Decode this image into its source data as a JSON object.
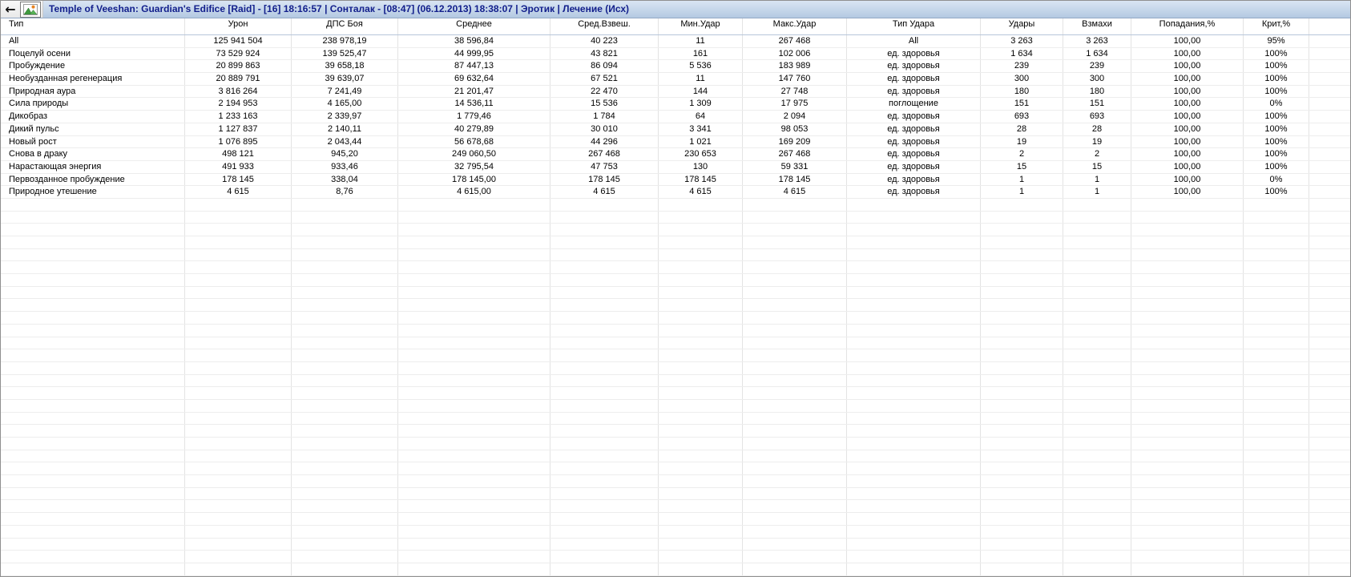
{
  "colors": {
    "titlebar_top": "#d9e5f3",
    "titlebar_bottom": "#b4c9e2",
    "title_text": "#13208c"
  },
  "toolbar": {
    "back_icon_glyph": "←",
    "graph_icon": "picture-chart-icon"
  },
  "header": {
    "title": "Temple of Veeshan: Guardian's Edifice [Raid] - [16] 18:16:57 | Сонталак - [08:47] (06.12.2013) 18:38:07 | Эротик | Лечение (Исх)"
  },
  "table": {
    "columns": [
      {
        "label": "Тип"
      },
      {
        "label": "Урон"
      },
      {
        "label": "ДПС Боя"
      },
      {
        "label": "Среднее"
      },
      {
        "label": "Сред.Взвеш."
      },
      {
        "label": "Мин.Удар"
      },
      {
        "label": "Макс.Удар"
      },
      {
        "label": "Тип Удара"
      },
      {
        "label": "Удары"
      },
      {
        "label": "Взмахи"
      },
      {
        "label": "Попадания,%"
      },
      {
        "label": "Крит,%"
      }
    ],
    "rows": [
      {
        "cells": [
          "All",
          "125 941 504",
          "238 978,19",
          "38 596,84",
          "40 223",
          "11",
          "267 468",
          "All",
          "3 263",
          "3 263",
          "100,00",
          "95%"
        ]
      },
      {
        "cells": [
          "Поцелуй осени",
          "73 529 924",
          "139 525,47",
          "44 999,95",
          "43 821",
          "161",
          "102 006",
          "ед. здоровья",
          "1 634",
          "1 634",
          "100,00",
          "100%"
        ]
      },
      {
        "cells": [
          "Пробуждение",
          "20 899 863",
          "39 658,18",
          "87 447,13",
          "86 094",
          "5 536",
          "183 989",
          "ед. здоровья",
          "239",
          "239",
          "100,00",
          "100%"
        ]
      },
      {
        "cells": [
          "Необузданная регенерация",
          "20 889 791",
          "39 639,07",
          "69 632,64",
          "67 521",
          "11",
          "147 760",
          "ед. здоровья",
          "300",
          "300",
          "100,00",
          "100%"
        ]
      },
      {
        "cells": [
          "Природная аура",
          "3 816 264",
          "7 241,49",
          "21 201,47",
          "22 470",
          "144",
          "27 748",
          "ед. здоровья",
          "180",
          "180",
          "100,00",
          "100%"
        ]
      },
      {
        "cells": [
          "Сила природы",
          "2 194 953",
          "4 165,00",
          "14 536,11",
          "15 536",
          "1 309",
          "17 975",
          "поглощение",
          "151",
          "151",
          "100,00",
          "0%"
        ]
      },
      {
        "cells": [
          "Дикобраз",
          "1 233 163",
          "2 339,97",
          "1 779,46",
          "1 784",
          "64",
          "2 094",
          "ед. здоровья",
          "693",
          "693",
          "100,00",
          "100%"
        ]
      },
      {
        "cells": [
          "Дикий пульс",
          "1 127 837",
          "2 140,11",
          "40 279,89",
          "30 010",
          "3 341",
          "98 053",
          "ед. здоровья",
          "28",
          "28",
          "100,00",
          "100%"
        ]
      },
      {
        "cells": [
          "Новый рост",
          "1 076 895",
          "2 043,44",
          "56 678,68",
          "44 296",
          "1 021",
          "169 209",
          "ед. здоровья",
          "19",
          "19",
          "100,00",
          "100%"
        ]
      },
      {
        "cells": [
          "Снова в драку",
          "498 121",
          "945,20",
          "249 060,50",
          "267 468",
          "230 653",
          "267 468",
          "ед. здоровья",
          "2",
          "2",
          "100,00",
          "100%"
        ]
      },
      {
        "cells": [
          "Нарастающая энергия",
          "491 933",
          "933,46",
          "32 795,54",
          "47 753",
          "130",
          "59 331",
          "ед. здоровья",
          "15",
          "15",
          "100,00",
          "100%"
        ]
      },
      {
        "cells": [
          "Первозданное пробуждение",
          "178 145",
          "338,04",
          "178 145,00",
          "178 145",
          "178 145",
          "178 145",
          "ед. здоровья",
          "1",
          "1",
          "100,00",
          "0%"
        ]
      },
      {
        "cells": [
          "Природное утешение",
          "4 615",
          "8,76",
          "4 615,00",
          "4 615",
          "4 615",
          "4 615",
          "ед. здоровья",
          "1",
          "1",
          "100,00",
          "100%"
        ]
      }
    ],
    "empty_row_count": 30
  }
}
